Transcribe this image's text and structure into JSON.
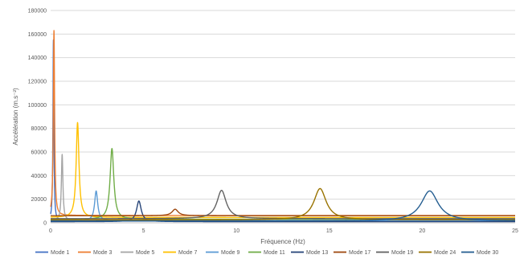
{
  "chart_data": {
    "type": "line",
    "title": "",
    "xlabel": "Fréquence (Hz)",
    "ylabel": "Accélération (m.s⁻²)",
    "xlim": [
      0,
      25
    ],
    "ylim": [
      0,
      180000
    ],
    "xticks": [
      0,
      5,
      10,
      15,
      20,
      25
    ],
    "xtick_labels": [
      "0",
      "5",
      "10",
      "15",
      "20",
      "25"
    ],
    "yticks": [
      0,
      20000,
      40000,
      60000,
      80000,
      100000,
      120000,
      140000,
      160000,
      180000
    ],
    "ytick_labels": [
      "0",
      "20000",
      "40000",
      "60000",
      "80000",
      "100000",
      "120000",
      "140000",
      "160000",
      "180000"
    ],
    "grid": "horizontal",
    "legend_position": "bottom",
    "series": [
      {
        "name": "Mode 1",
        "color": "#4472C4",
        "peak_x": 0.15,
        "peak_y": 155000,
        "width": 0.03,
        "base": 1500
      },
      {
        "name": "Mode 3",
        "color": "#ED7D31",
        "peak_x": 0.18,
        "peak_y": 163000,
        "width": 0.04,
        "base": 6200
      },
      {
        "name": "Mode 5",
        "color": "#A5A5A5",
        "peak_x": 0.62,
        "peak_y": 58000,
        "width": 0.05,
        "base": 2000
      },
      {
        "name": "Mode 7",
        "color": "#FFC000",
        "peak_x": 1.45,
        "peak_y": 85000,
        "width": 0.09,
        "base": 4500
      },
      {
        "name": "Mode 9",
        "color": "#5B9BD5",
        "peak_x": 2.45,
        "peak_y": 27000,
        "width": 0.1,
        "base": 1800
      },
      {
        "name": "Mode 11",
        "color": "#70AD47",
        "peak_x": 3.3,
        "peak_y": 63000,
        "width": 0.12,
        "base": 3000
      },
      {
        "name": "Mode 13",
        "color": "#264478",
        "peak_x": 4.75,
        "peak_y": 18500,
        "width": 0.15,
        "base": 1000
      },
      {
        "name": "Mode 17",
        "color": "#9E480E",
        "peak_x": 6.7,
        "peak_y": 11500,
        "width": 0.2,
        "base": 6000
      },
      {
        "name": "Mode 19",
        "color": "#636363",
        "peak_x": 9.2,
        "peak_y": 27500,
        "width": 0.3,
        "base": 3500
      },
      {
        "name": "Mode 24",
        "color": "#997300",
        "peak_x": 14.5,
        "peak_y": 29000,
        "width": 0.4,
        "base": 2500
      },
      {
        "name": "Mode 30",
        "color": "#255E91",
        "peak_x": 20.4,
        "peak_y": 27000,
        "width": 0.55,
        "base": 1500
      }
    ]
  }
}
